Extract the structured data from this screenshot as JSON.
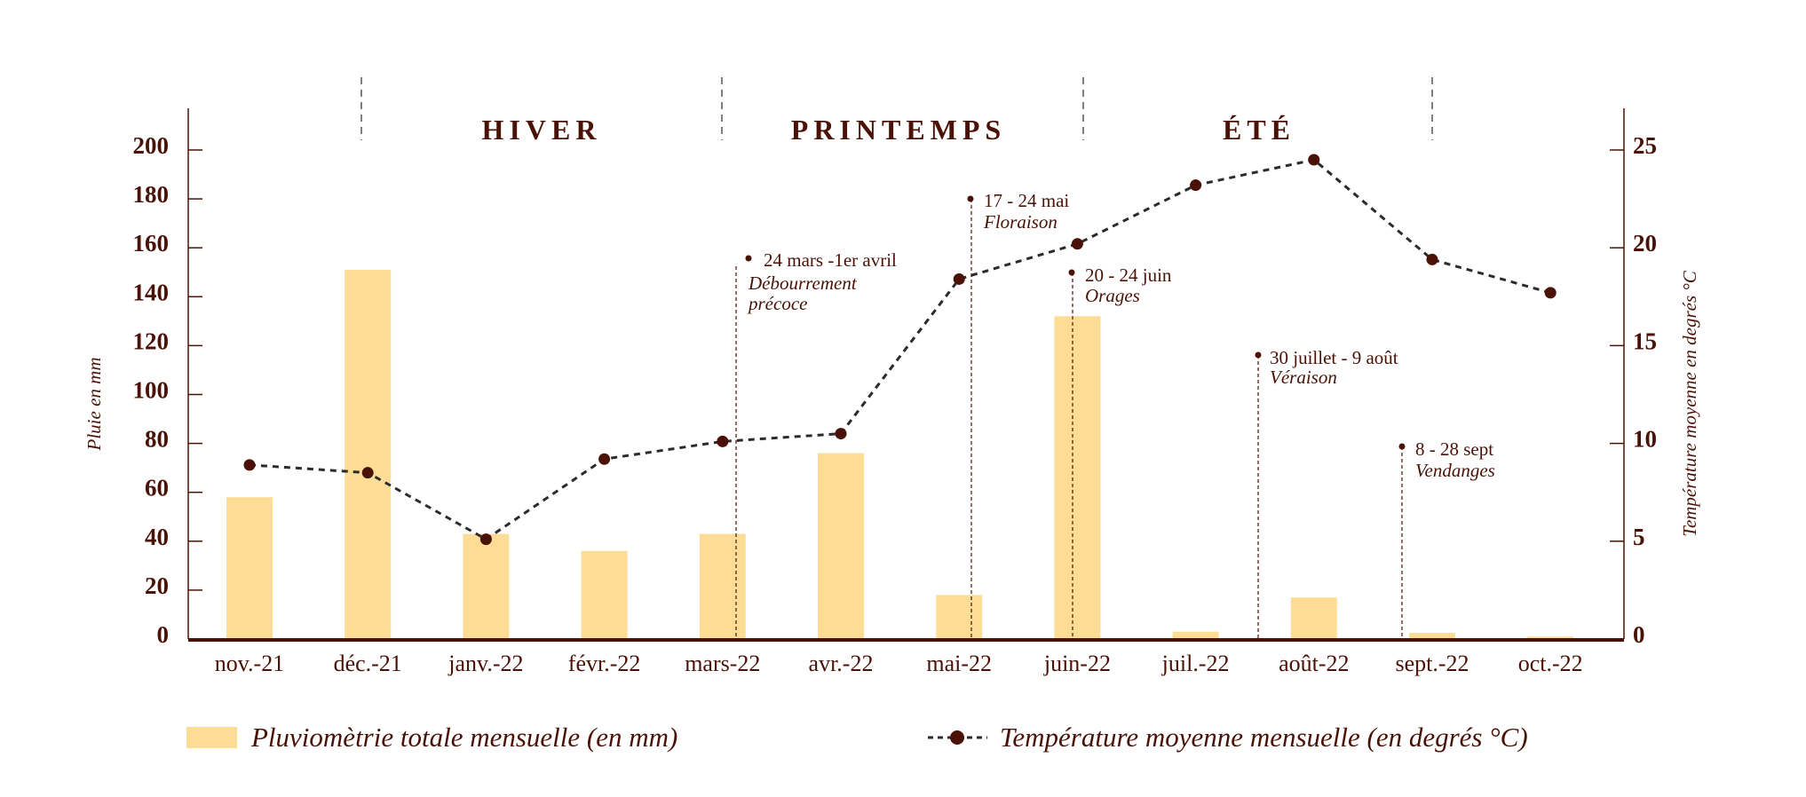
{
  "chart_data": {
    "type": "bar+line",
    "categories": [
      "nov.-21",
      "déc.-21",
      "janv.-22",
      "févr.-22",
      "mars-22",
      "avr.-22",
      "mai-22",
      "juin-22",
      "juil.-22",
      "août-22",
      "sept.-22",
      "oct.-22"
    ],
    "series": [
      {
        "name": "Pluviomètrie totale mensuelle (en mm)",
        "type": "bar",
        "axis": "left",
        "color": "#fddc95",
        "values": [
          58,
          151,
          43,
          36,
          43,
          76,
          18,
          132,
          3,
          17,
          2.5,
          1
        ]
      },
      {
        "name": "Température moyenne mensuelle (en degrés °C)",
        "type": "line",
        "style": "dashed",
        "axis": "right",
        "color": "#2b2b2b",
        "marker_color": "#4a1206",
        "values": [
          8.9,
          8.5,
          5.1,
          9.2,
          10.1,
          10.5,
          18.4,
          20.2,
          23.2,
          24.5,
          19.4,
          17.7
        ]
      }
    ],
    "y_left": {
      "label": "Pluie en mm",
      "range": [
        0,
        200
      ],
      "ticks": [
        "0",
        "20",
        "40",
        "60",
        "80",
        "100",
        "120",
        "140",
        "160",
        "180",
        "200"
      ]
    },
    "y_right": {
      "label": "Température moyenne en degrés °C",
      "range": [
        0,
        25
      ],
      "ticks": [
        "0",
        "5",
        "10",
        "15",
        "20",
        "25"
      ]
    },
    "seasons": [
      {
        "label": "HIVER"
      },
      {
        "label": "PRINTEMPS"
      },
      {
        "label": "ÉTÉ"
      }
    ],
    "annotations": [
      {
        "date": "24 mars -1er avril",
        "event": "Débourrement",
        "event2": "précoce"
      },
      {
        "date": "17 - 24 mai",
        "event": "Floraison"
      },
      {
        "date": "20 - 24 juin",
        "event": "Orages"
      },
      {
        "date": "30 juillet - 9 août",
        "event": "Véraison"
      },
      {
        "date": "8 - 28 sept",
        "event": "Vendanges"
      }
    ],
    "legend_position": "bottom",
    "grid": false
  },
  "colors": {
    "text": "#4a1206",
    "bar": "#fddc95",
    "line": "#2b2b2b"
  }
}
